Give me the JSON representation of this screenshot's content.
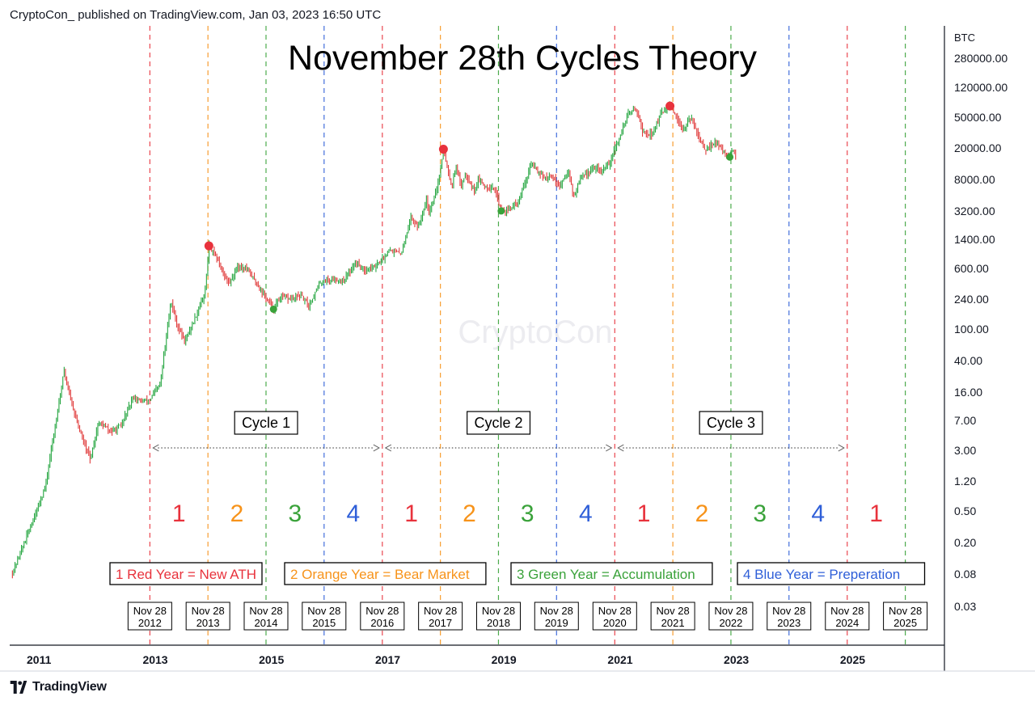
{
  "header": {
    "published": "CryptoCon_ published on TradingView.com, Jan 03, 2023 16:50 UTC"
  },
  "footer": {
    "brand": "TradingView"
  },
  "watermark": "CryptoCon",
  "colors": {
    "red": "#e8323c",
    "orange": "#f7931a",
    "green": "#3aa23a",
    "blue": "#2f5fd8",
    "candle_up": "#26a641",
    "candle_down": "#e03c3c",
    "axis": "#131722"
  },
  "chart_data": {
    "type": "candlestick",
    "title": "November 28th Cycles Theory",
    "y_scale": "log",
    "y_unit": "BTC",
    "y_ticks": [
      "280000.00",
      "120000.00",
      "50000.00",
      "20000.00",
      "8000.00",
      "3200.00",
      "1400.00",
      "600.00",
      "240.00",
      "100.00",
      "40.00",
      "16.00",
      "7.00",
      "3.00",
      "1.20",
      "0.50",
      "0.20",
      "0.08",
      "0.03"
    ],
    "x_ticks": [
      "2011",
      "2013",
      "2015",
      "2017",
      "2019",
      "2021",
      "2023",
      "2025"
    ],
    "x_range": [
      "2010-07-01",
      "2026-08-01"
    ],
    "price_path": [
      [
        "2010-07-18",
        0.08
      ],
      [
        "2010-11-06",
        0.3
      ],
      [
        "2011-02-10",
        1.0
      ],
      [
        "2011-06-08",
        30
      ],
      [
        "2011-07-15",
        14
      ],
      [
        "2011-09-15",
        5
      ],
      [
        "2011-11-18",
        2.2
      ],
      [
        "2012-01-10",
        6.5
      ],
      [
        "2012-04-01",
        5
      ],
      [
        "2012-06-01",
        6
      ],
      [
        "2012-08-17",
        14
      ],
      [
        "2012-10-01",
        12
      ],
      [
        "2012-12-01",
        13
      ],
      [
        "2013-02-01",
        20
      ],
      [
        "2013-04-09",
        230
      ],
      [
        "2013-05-15",
        120
      ],
      [
        "2013-07-05",
        70
      ],
      [
        "2013-09-01",
        130
      ],
      [
        "2013-11-10",
        300
      ],
      [
        "2013-12-04",
        1150
      ],
      [
        "2014-01-15",
        850
      ],
      [
        "2014-02-25",
        550
      ],
      [
        "2014-04-10",
        380
      ],
      [
        "2014-06-01",
        640
      ],
      [
        "2014-08-01",
        590
      ],
      [
        "2014-10-01",
        380
      ],
      [
        "2015-01-14",
        180
      ],
      [
        "2015-03-01",
        260
      ],
      [
        "2015-05-01",
        240
      ],
      [
        "2015-07-01",
        270
      ],
      [
        "2015-08-25",
        200
      ],
      [
        "2015-11-05",
        400
      ],
      [
        "2016-01-01",
        430
      ],
      [
        "2016-04-01",
        420
      ],
      [
        "2016-06-16",
        720
      ],
      [
        "2016-08-01",
        580
      ],
      [
        "2016-10-01",
        620
      ],
      [
        "2016-12-01",
        760
      ],
      [
        "2017-01-04",
        1050
      ],
      [
        "2017-03-25",
        900
      ],
      [
        "2017-05-25",
        2600
      ],
      [
        "2017-07-15",
        2000
      ],
      [
        "2017-09-01",
        4800
      ],
      [
        "2017-09-15",
        3100
      ],
      [
        "2017-11-10",
        6500
      ],
      [
        "2017-12-17",
        19500
      ],
      [
        "2018-02-06",
        6500
      ],
      [
        "2018-03-05",
        11500
      ],
      [
        "2018-04-06",
        6600
      ],
      [
        "2018-05-05",
        9800
      ],
      [
        "2018-06-29",
        5900
      ],
      [
        "2018-07-25",
        8200
      ],
      [
        "2018-09-01",
        6500
      ],
      [
        "2018-11-01",
        6300
      ],
      [
        "2018-12-15",
        3200
      ],
      [
        "2019-02-01",
        3400
      ],
      [
        "2019-04-01",
        4100
      ],
      [
        "2019-06-26",
        13000
      ],
      [
        "2019-08-01",
        10500
      ],
      [
        "2019-09-26",
        8000
      ],
      [
        "2019-10-26",
        9400
      ],
      [
        "2019-12-18",
        6500
      ],
      [
        "2020-02-13",
        10400
      ],
      [
        "2020-03-13",
        4800
      ],
      [
        "2020-05-01",
        8800
      ],
      [
        "2020-08-01",
        11500
      ],
      [
        "2020-09-05",
        10000
      ],
      [
        "2020-11-01",
        13700
      ],
      [
        "2020-12-31",
        29000
      ],
      [
        "2021-02-20",
        56000
      ],
      [
        "2021-04-14",
        64000
      ],
      [
        "2021-05-23",
        32000
      ],
      [
        "2021-07-20",
        29800
      ],
      [
        "2021-09-07",
        52000
      ],
      [
        "2021-11-10",
        69000
      ],
      [
        "2022-01-22",
        35000
      ],
      [
        "2022-03-28",
        47500
      ],
      [
        "2022-05-12",
        28000
      ],
      [
        "2022-06-18",
        17800
      ],
      [
        "2022-08-14",
        24400
      ],
      [
        "2022-09-30",
        19400
      ],
      [
        "2022-11-09",
        15800
      ],
      [
        "2022-12-14",
        18000
      ],
      [
        "2023-01-03",
        16700
      ]
    ],
    "highlight_points": [
      {
        "date": "2013-12-04",
        "price": 1150,
        "kind": "ATH",
        "color": "red"
      },
      {
        "date": "2017-12-17",
        "price": 19500,
        "kind": "ATH",
        "color": "red"
      },
      {
        "date": "2021-11-10",
        "price": 69000,
        "kind": "ATH",
        "color": "red"
      },
      {
        "date": "2015-01-14",
        "price": 180,
        "kind": "low",
        "color": "green"
      },
      {
        "date": "2018-12-15",
        "price": 3200,
        "kind": "low",
        "color": "green"
      },
      {
        "date": "2022-11-21",
        "price": 15500,
        "kind": "low",
        "color": "green"
      }
    ],
    "cycle_lines": [
      {
        "date": "2012-11-28",
        "color": "red",
        "line1": "Nov 28",
        "line2": "2012"
      },
      {
        "date": "2013-11-28",
        "color": "orange",
        "line1": "Nov 28",
        "line2": "2013"
      },
      {
        "date": "2014-11-28",
        "color": "green",
        "line1": "Nov 28",
        "line2": "2014"
      },
      {
        "date": "2015-11-28",
        "color": "blue",
        "line1": "Nov 28",
        "line2": "2015"
      },
      {
        "date": "2016-11-28",
        "color": "red",
        "line1": "Nov 28",
        "line2": "2016"
      },
      {
        "date": "2017-11-28",
        "color": "orange",
        "line1": "Nov 28",
        "line2": "2017"
      },
      {
        "date": "2018-11-28",
        "color": "green",
        "line1": "Nov 28",
        "line2": "2018"
      },
      {
        "date": "2019-11-28",
        "color": "blue",
        "line1": "Nov 28",
        "line2": "2019"
      },
      {
        "date": "2020-11-28",
        "color": "red",
        "line1": "Nov 28",
        "line2": "2020"
      },
      {
        "date": "2021-11-28",
        "color": "orange",
        "line1": "Nov 28",
        "line2": "2021"
      },
      {
        "date": "2022-11-28",
        "color": "green",
        "line1": "Nov 28",
        "line2": "2022"
      },
      {
        "date": "2023-11-28",
        "color": "blue",
        "line1": "Nov 28",
        "line2": "2023"
      },
      {
        "date": "2024-11-28",
        "color": "red",
        "line1": "Nov 28",
        "line2": "2024"
      },
      {
        "date": "2025-11-28",
        "color": "green",
        "line1": "Nov 28",
        "line2": "2025"
      }
    ],
    "year_numbers": [
      {
        "text": "1",
        "color": "red",
        "from": "2012-11-28",
        "to": "2013-11-28"
      },
      {
        "text": "2",
        "color": "orange",
        "from": "2013-11-28",
        "to": "2014-11-28"
      },
      {
        "text": "3",
        "color": "green",
        "from": "2014-11-28",
        "to": "2015-11-28"
      },
      {
        "text": "4",
        "color": "blue",
        "from": "2015-11-28",
        "to": "2016-11-28"
      },
      {
        "text": "1",
        "color": "red",
        "from": "2016-11-28",
        "to": "2017-11-28"
      },
      {
        "text": "2",
        "color": "orange",
        "from": "2017-11-28",
        "to": "2018-11-28"
      },
      {
        "text": "3",
        "color": "green",
        "from": "2018-11-28",
        "to": "2019-11-28"
      },
      {
        "text": "4",
        "color": "blue",
        "from": "2019-11-28",
        "to": "2020-11-28"
      },
      {
        "text": "1",
        "color": "red",
        "from": "2020-11-28",
        "to": "2021-11-28"
      },
      {
        "text": "2",
        "color": "orange",
        "from": "2021-11-28",
        "to": "2022-11-28"
      },
      {
        "text": "3",
        "color": "green",
        "from": "2022-11-28",
        "to": "2023-11-28"
      },
      {
        "text": "4",
        "color": "blue",
        "from": "2023-11-28",
        "to": "2024-11-28"
      },
      {
        "text": "1",
        "color": "red",
        "from": "2024-11-28",
        "to": "2025-11-28"
      }
    ],
    "cycles": [
      {
        "label": "Cycle 1",
        "from": "2012-11-28",
        "to": "2016-11-28"
      },
      {
        "label": "Cycle 2",
        "from": "2016-11-28",
        "to": "2020-11-28"
      },
      {
        "label": "Cycle 3",
        "from": "2020-11-28",
        "to": "2024-11-28"
      }
    ],
    "legend": [
      {
        "text": "1 Red Year = New ATH",
        "color": "red"
      },
      {
        "text": "2 Orange Year = Bear Market",
        "color": "orange"
      },
      {
        "text": "3 Green Year = Accumulation",
        "color": "green"
      },
      {
        "text": "4 Blue Year = Preperation",
        "color": "blue"
      }
    ]
  }
}
